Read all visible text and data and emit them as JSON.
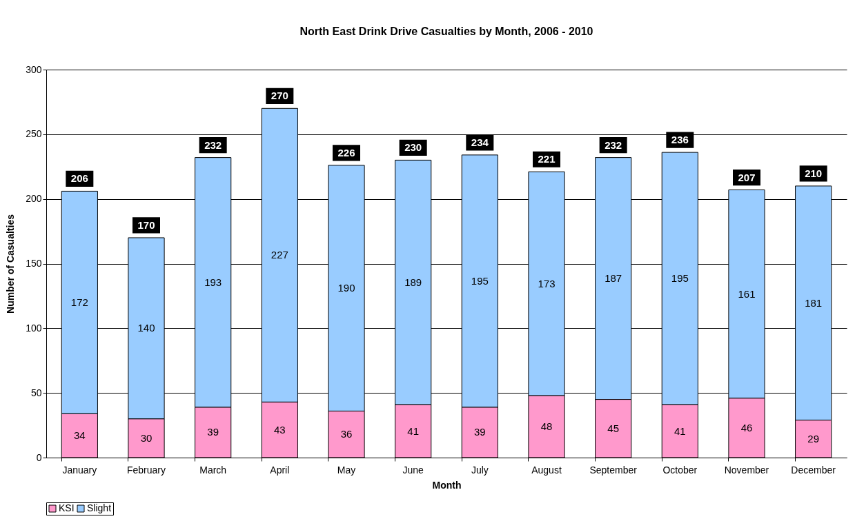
{
  "chart_data": {
    "type": "bar",
    "title": "North East Drink Drive Casualties by Month, 2006 - 2010",
    "xlabel": "Month",
    "ylabel": "Number of Casualties",
    "categories": [
      "January",
      "February",
      "March",
      "April",
      "May",
      "June",
      "July",
      "August",
      "September",
      "October",
      "November",
      "December"
    ],
    "stacked": true,
    "series": [
      {
        "name": "KSI",
        "color": "#ff99cc",
        "values": [
          34,
          30,
          39,
          43,
          36,
          41,
          39,
          48,
          45,
          41,
          46,
          29
        ]
      },
      {
        "name": "Slight",
        "color": "#99ccff",
        "values": [
          172,
          140,
          193,
          227,
          190,
          189,
          195,
          173,
          187,
          195,
          161,
          181
        ]
      }
    ],
    "totals": [
      "206",
      "170",
      "232",
      "270",
      "226",
      "230",
      "234",
      "221",
      "232",
      "236",
      "207",
      "210"
    ],
    "ylim": [
      0,
      300
    ],
    "yticks": [
      0,
      50,
      100,
      150,
      200,
      250,
      300
    ],
    "grid": "y",
    "legend": "bottom",
    "data_labels": true
  }
}
